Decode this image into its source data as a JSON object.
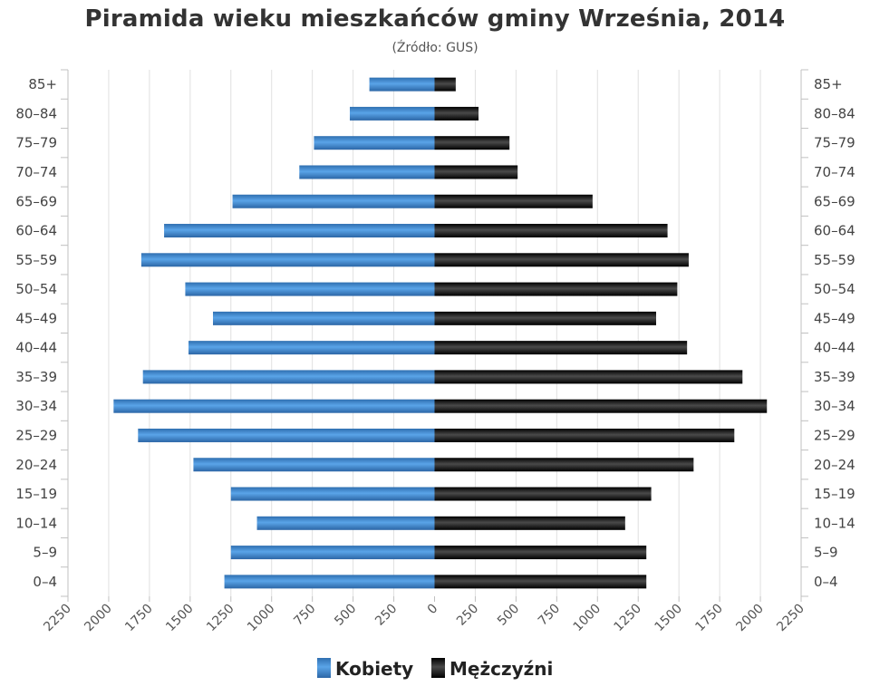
{
  "chart_data": {
    "type": "bar",
    "orientation": "horizontal",
    "variant": "population-pyramid",
    "title": "Piramida wieku mieszkańców gminy Września, 2014",
    "subtitle": "(Źródło: GUS)",
    "categories": [
      "85+",
      "80-84",
      "75-79",
      "70-74",
      "65-69",
      "60-64",
      "55-59",
      "50-54",
      "45-49",
      "40-44",
      "35-39",
      "30-34",
      "25-29",
      "20-24",
      "15-19",
      "10-14",
      "5-9",
      "0-4"
    ],
    "series": [
      {
        "name": "Kobiety",
        "side": "left",
        "color": "#4a8fd4",
        "values": [
          400,
          520,
          740,
          830,
          1240,
          1660,
          1800,
          1530,
          1360,
          1510,
          1790,
          1970,
          1820,
          1480,
          1250,
          1090,
          1250,
          1290
        ]
      },
      {
        "name": "Mężczyźni",
        "side": "right",
        "color": "#1a1a1a",
        "values": [
          130,
          270,
          460,
          510,
          970,
          1430,
          1560,
          1490,
          1360,
          1550,
          1890,
          2040,
          1840,
          1590,
          1330,
          1170,
          1300,
          1300
        ]
      }
    ],
    "x_ticks": [
      "2250",
      "2000",
      "1750",
      "1500",
      "1250",
      "1000",
      "750",
      "500",
      "250",
      "0",
      "250",
      "500",
      "750",
      "1000",
      "1250",
      "1500",
      "1750",
      "2000",
      "2250"
    ],
    "xlim": [
      -2250,
      2250
    ],
    "grid": true,
    "legend": "bottom-center"
  }
}
